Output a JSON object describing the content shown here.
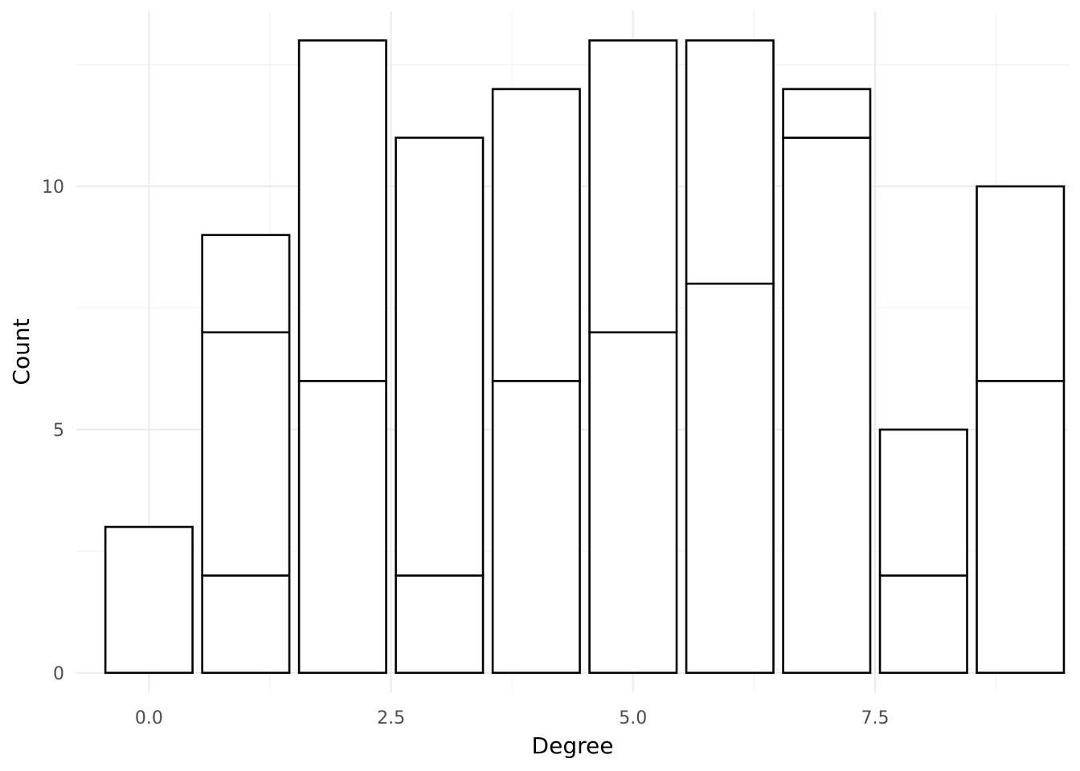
{
  "chart_data": {
    "type": "bar",
    "stacked": true,
    "title": "",
    "xlabel": "Degree",
    "ylabel": "Count",
    "x": [
      0,
      1,
      2,
      3,
      4,
      5,
      6,
      7,
      8,
      9
    ],
    "stack_boundaries": [
      [
        3
      ],
      [
        2,
        7,
        9
      ],
      [
        6,
        13
      ],
      [
        2,
        11
      ],
      [
        6,
        12
      ],
      [
        7,
        13
      ],
      [
        8,
        13
      ],
      [
        11,
        12
      ],
      [
        2,
        5
      ],
      [
        6,
        10
      ]
    ],
    "totals": [
      3,
      9,
      13,
      11,
      12,
      13,
      13,
      12,
      5,
      10
    ],
    "xlim": [
      -0.75,
      9.5
    ],
    "ylim": [
      -0.4,
      13.6
    ],
    "x_ticks": [
      0,
      2.5,
      5,
      7.5
    ],
    "x_tick_labels": [
      "0.0",
      "2.5",
      "5.0",
      "7.5"
    ],
    "y_ticks": [
      0,
      5,
      10
    ],
    "y_tick_labels": [
      "0",
      "5",
      "10"
    ],
    "bar_width": 0.9,
    "grid": true,
    "legend": "none",
    "colors": {
      "bar_fill": "#ffffff",
      "bar_stroke": "#000000",
      "grid": "#ebebeb"
    }
  }
}
